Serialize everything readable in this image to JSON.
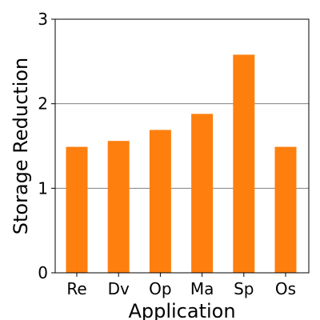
{
  "chart_data": {
    "type": "bar",
    "xlabel": "Application",
    "ylabel": "Storage Reduction",
    "categories": [
      "Re",
      "Dv",
      "Op",
      "Ma",
      "Sp",
      "Os"
    ],
    "values": [
      1.49,
      1.56,
      1.69,
      1.88,
      2.58,
      1.49
    ],
    "ylim": [
      0,
      3
    ],
    "yticks": [
      "0",
      "1",
      "2",
      "3"
    ],
    "grid": "horizontal",
    "bar_color": "#ff7f0e",
    "grid_color": "#808080"
  }
}
